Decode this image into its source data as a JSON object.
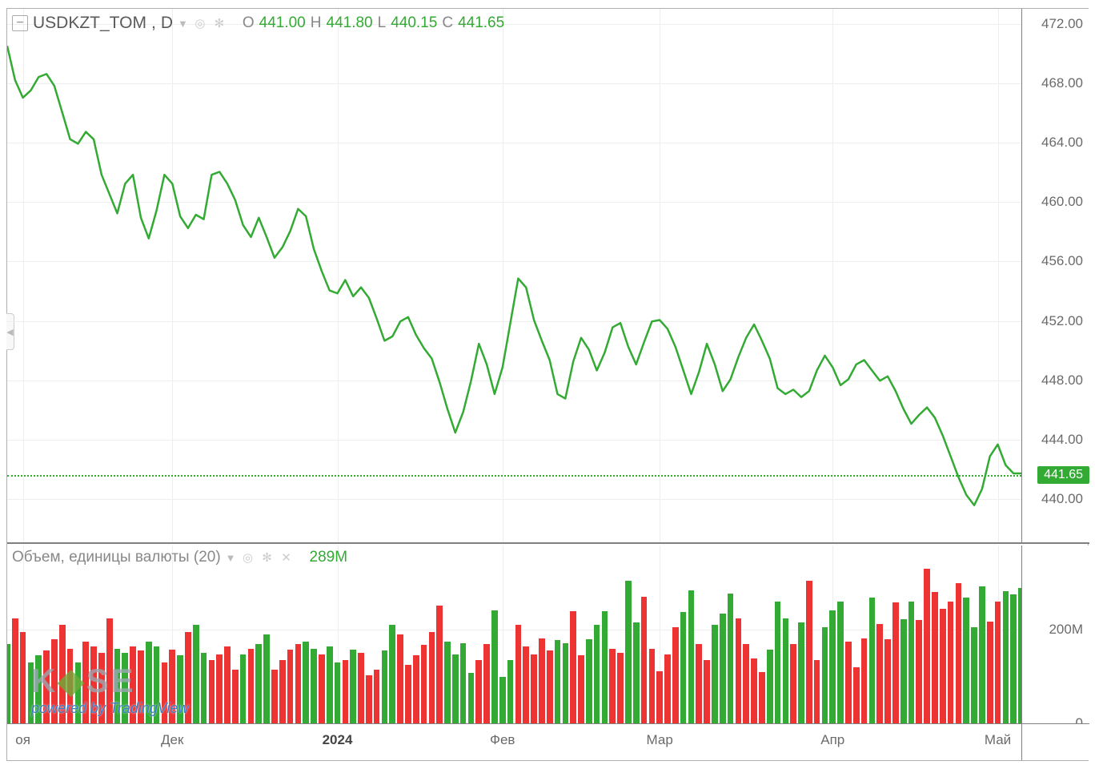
{
  "chart": {
    "symbol": "USDKZT_TOM",
    "interval": "D",
    "ohlc": {
      "o_label": "O",
      "o": "441.00",
      "h_label": "H",
      "h": "441.80",
      "l_label": "L",
      "l": "440.15",
      "c_label": "C",
      "c": "441.65"
    },
    "price_line_color": "#33aa33",
    "price_line_width": 2.5,
    "current_price": 441.65,
    "current_price_label": "441.65",
    "background_color": "#ffffff",
    "grid_color": "#eeeeee",
    "y": {
      "min": 437.0,
      "max": 473.0,
      "ticks": [
        440.0,
        444.0,
        448.0,
        452.0,
        456.0,
        460.0,
        464.0,
        468.0,
        472.0
      ],
      "tick_labels": [
        "440.00",
        "444.00",
        "448.00",
        "452.00",
        "456.00",
        "460.00",
        "464.00",
        "468.00",
        "472.00"
      ]
    },
    "x": {
      "n": 130,
      "ticks": [
        {
          "i": 2,
          "label": "оя",
          "bold": false
        },
        {
          "i": 21,
          "label": "Дек",
          "bold": false
        },
        {
          "i": 42,
          "label": "2024",
          "bold": true
        },
        {
          "i": 63,
          "label": "Фев",
          "bold": false
        },
        {
          "i": 83,
          "label": "Мар",
          "bold": false
        },
        {
          "i": 105,
          "label": "Апр",
          "bold": false
        },
        {
          "i": 126,
          "label": "Май",
          "bold": false
        }
      ]
    },
    "price_series": [
      470.5,
      468.2,
      467.0,
      467.5,
      468.4,
      468.6,
      467.8,
      466.0,
      464.2,
      463.9,
      464.7,
      464.2,
      461.8,
      460.5,
      459.2,
      461.2,
      461.8,
      458.9,
      457.5,
      459.4,
      461.8,
      461.2,
      459.0,
      458.2,
      459.1,
      458.8,
      461.8,
      462.0,
      461.2,
      460.1,
      458.4,
      457.6,
      458.9,
      457.6,
      456.2,
      456.9,
      458.0,
      459.5,
      459.0,
      456.8,
      455.3,
      454.0,
      453.8,
      454.7,
      453.6,
      454.2,
      453.5,
      452.1,
      450.6,
      450.9,
      451.9,
      452.2,
      451.0,
      450.1,
      449.4,
      447.8,
      446.0,
      444.4,
      445.8,
      447.9,
      450.4,
      449.0,
      447.0,
      448.8,
      451.8,
      454.8,
      454.2,
      452.0,
      450.6,
      449.3,
      447.0,
      446.7,
      449.2,
      450.8,
      450.0,
      448.6,
      449.8,
      451.5,
      451.8,
      450.2,
      449.0,
      450.5,
      451.9,
      452.0,
      451.4,
      450.2,
      448.6,
      447.0,
      448.5,
      450.4,
      449.0,
      447.2,
      448.0,
      449.5,
      450.8,
      451.7,
      450.6,
      449.4,
      447.4,
      447.0,
      447.3,
      446.8,
      447.2,
      448.6,
      449.6,
      448.8,
      447.6,
      448.0,
      449.0,
      449.3,
      448.6,
      447.9,
      448.2,
      447.2,
      446.0,
      445.0,
      445.6,
      446.1,
      445.4,
      444.2,
      442.8,
      441.4,
      440.2,
      439.5,
      440.6,
      442.8,
      443.6,
      442.2,
      441.65,
      441.65
    ]
  },
  "volume": {
    "title": "Объем, единицы валюты (20)",
    "value_label": "289M",
    "y": {
      "min": 0,
      "max": 380,
      "ticks": [
        0,
        200
      ],
      "tick_labels": [
        "0",
        "200M"
      ]
    },
    "up_color": "#33aa33",
    "down_color": "#ee3333",
    "bars": [
      {
        "v": 170,
        "d": 1
      },
      {
        "v": 225,
        "d": -1
      },
      {
        "v": 195,
        "d": -1
      },
      {
        "v": 130,
        "d": 1
      },
      {
        "v": 145,
        "d": 1
      },
      {
        "v": 155,
        "d": -1
      },
      {
        "v": 180,
        "d": -1
      },
      {
        "v": 210,
        "d": -1
      },
      {
        "v": 160,
        "d": -1
      },
      {
        "v": 130,
        "d": 1
      },
      {
        "v": 175,
        "d": -1
      },
      {
        "v": 165,
        "d": -1
      },
      {
        "v": 150,
        "d": -1
      },
      {
        "v": 225,
        "d": -1
      },
      {
        "v": 160,
        "d": 1
      },
      {
        "v": 150,
        "d": 1
      },
      {
        "v": 165,
        "d": -1
      },
      {
        "v": 155,
        "d": -1
      },
      {
        "v": 175,
        "d": 1
      },
      {
        "v": 165,
        "d": 1
      },
      {
        "v": 130,
        "d": -1
      },
      {
        "v": 158,
        "d": -1
      },
      {
        "v": 145,
        "d": 1
      },
      {
        "v": 195,
        "d": -1
      },
      {
        "v": 210,
        "d": 1
      },
      {
        "v": 150,
        "d": 1
      },
      {
        "v": 135,
        "d": -1
      },
      {
        "v": 148,
        "d": -1
      },
      {
        "v": 165,
        "d": -1
      },
      {
        "v": 115,
        "d": -1
      },
      {
        "v": 148,
        "d": 1
      },
      {
        "v": 160,
        "d": -1
      },
      {
        "v": 170,
        "d": 1
      },
      {
        "v": 190,
        "d": 1
      },
      {
        "v": 115,
        "d": -1
      },
      {
        "v": 135,
        "d": -1
      },
      {
        "v": 158,
        "d": -1
      },
      {
        "v": 170,
        "d": -1
      },
      {
        "v": 175,
        "d": 1
      },
      {
        "v": 160,
        "d": 1
      },
      {
        "v": 148,
        "d": -1
      },
      {
        "v": 165,
        "d": 1
      },
      {
        "v": 130,
        "d": 1
      },
      {
        "v": 135,
        "d": -1
      },
      {
        "v": 158,
        "d": 1
      },
      {
        "v": 150,
        "d": -1
      },
      {
        "v": 102,
        "d": -1
      },
      {
        "v": 115,
        "d": -1
      },
      {
        "v": 155,
        "d": 1
      },
      {
        "v": 210,
        "d": 1
      },
      {
        "v": 190,
        "d": -1
      },
      {
        "v": 125,
        "d": -1
      },
      {
        "v": 145,
        "d": -1
      },
      {
        "v": 168,
        "d": -1
      },
      {
        "v": 195,
        "d": -1
      },
      {
        "v": 252,
        "d": -1
      },
      {
        "v": 175,
        "d": 1
      },
      {
        "v": 148,
        "d": 1
      },
      {
        "v": 172,
        "d": 1
      },
      {
        "v": 108,
        "d": 1
      },
      {
        "v": 135,
        "d": -1
      },
      {
        "v": 170,
        "d": -1
      },
      {
        "v": 242,
        "d": 1
      },
      {
        "v": 100,
        "d": 1
      },
      {
        "v": 135,
        "d": 1
      },
      {
        "v": 210,
        "d": -1
      },
      {
        "v": 165,
        "d": -1
      },
      {
        "v": 148,
        "d": -1
      },
      {
        "v": 182,
        "d": -1
      },
      {
        "v": 155,
        "d": -1
      },
      {
        "v": 178,
        "d": 1
      },
      {
        "v": 172,
        "d": 1
      },
      {
        "v": 240,
        "d": -1
      },
      {
        "v": 145,
        "d": -1
      },
      {
        "v": 180,
        "d": 1
      },
      {
        "v": 210,
        "d": 1
      },
      {
        "v": 240,
        "d": 1
      },
      {
        "v": 160,
        "d": -1
      },
      {
        "v": 150,
        "d": -1
      },
      {
        "v": 305,
        "d": 1
      },
      {
        "v": 215,
        "d": 1
      },
      {
        "v": 270,
        "d": -1
      },
      {
        "v": 160,
        "d": -1
      },
      {
        "v": 112,
        "d": -1
      },
      {
        "v": 148,
        "d": -1
      },
      {
        "v": 205,
        "d": -1
      },
      {
        "v": 238,
        "d": 1
      },
      {
        "v": 285,
        "d": 1
      },
      {
        "v": 170,
        "d": -1
      },
      {
        "v": 135,
        "d": -1
      },
      {
        "v": 210,
        "d": 1
      },
      {
        "v": 235,
        "d": 1
      },
      {
        "v": 278,
        "d": 1
      },
      {
        "v": 225,
        "d": -1
      },
      {
        "v": 170,
        "d": -1
      },
      {
        "v": 138,
        "d": -1
      },
      {
        "v": 110,
        "d": -1
      },
      {
        "v": 158,
        "d": 1
      },
      {
        "v": 260,
        "d": 1
      },
      {
        "v": 225,
        "d": 1
      },
      {
        "v": 170,
        "d": -1
      },
      {
        "v": 215,
        "d": 1
      },
      {
        "v": 305,
        "d": -1
      },
      {
        "v": 135,
        "d": -1
      },
      {
        "v": 205,
        "d": 1
      },
      {
        "v": 242,
        "d": 1
      },
      {
        "v": 260,
        "d": 1
      },
      {
        "v": 175,
        "d": -1
      },
      {
        "v": 120,
        "d": -1
      },
      {
        "v": 182,
        "d": -1
      },
      {
        "v": 268,
        "d": 1
      },
      {
        "v": 212,
        "d": -1
      },
      {
        "v": 180,
        "d": -1
      },
      {
        "v": 258,
        "d": -1
      },
      {
        "v": 222,
        "d": 1
      },
      {
        "v": 260,
        "d": 1
      },
      {
        "v": 220,
        "d": -1
      },
      {
        "v": 330,
        "d": -1
      },
      {
        "v": 280,
        "d": -1
      },
      {
        "v": 245,
        "d": -1
      },
      {
        "v": 260,
        "d": -1
      },
      {
        "v": 300,
        "d": -1
      },
      {
        "v": 268,
        "d": 1
      },
      {
        "v": 205,
        "d": 1
      },
      {
        "v": 292,
        "d": 1
      },
      {
        "v": 218,
        "d": -1
      },
      {
        "v": 260,
        "d": -1
      },
      {
        "v": 282,
        "d": 1
      },
      {
        "v": 275,
        "d": 1
      },
      {
        "v": 289,
        "d": 1
      }
    ]
  },
  "logo": {
    "brand": "KASE",
    "sub": "powered by TradingView"
  }
}
